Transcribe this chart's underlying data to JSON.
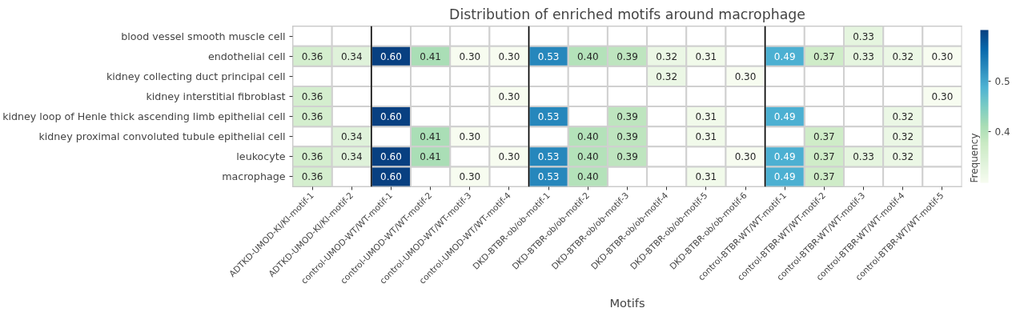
{
  "chart_data": {
    "type": "heatmap",
    "title": "Distribution of enriched motifs around macrophage",
    "xlabel": "Motifs",
    "clabel": "Frequency",
    "categories": [
      "ADTKD-UMOD-KI/KI-motif-1",
      "ADTKD-UMOD-KI/KI-motif-2",
      "control-UMOD-WT/WT-motif-1",
      "control-UMOD-WT/WT-motif-2",
      "control-UMOD-WT/WT-motif-3",
      "control-UMOD-WT/WT-motif-4",
      "DKD-BTBR-ob/ob-motif-1",
      "DKD-BTBR-ob/ob-motif-2",
      "DKD-BTBR-ob/ob-motif-3",
      "DKD-BTBR-ob/ob-motif-4",
      "DKD-BTBR-ob/ob-motif-5",
      "DKD-BTBR-ob/ob-motif-6",
      "control-BTBR-WT/WT-motif-1",
      "control-BTBR-WT/WT-motif-2",
      "control-BTBR-WT/WT-motif-3",
      "control-BTBR-WT/WT-motif-4",
      "control-BTBR-WT/WT-motif-5"
    ],
    "y_categories": [
      "blood vessel smooth muscle cell",
      "endothelial cell",
      "kidney collecting duct principal cell",
      "kidney interstitial fibroblast",
      "kidney loop of Henle thick ascending limb epithelial cell",
      "kidney proximal convoluted tubule epithelial cell",
      "leukocyte",
      "macrophage"
    ],
    "cells": [
      [
        null,
        null,
        null,
        null,
        null,
        null,
        null,
        null,
        null,
        null,
        null,
        null,
        null,
        null,
        0.33,
        null,
        null
      ],
      [
        0.36,
        0.34,
        0.6,
        0.41,
        0.3,
        0.3,
        0.53,
        0.4,
        0.39,
        0.32,
        0.31,
        null,
        0.49,
        0.37,
        0.33,
        0.32,
        0.3
      ],
      [
        null,
        null,
        null,
        null,
        null,
        null,
        null,
        null,
        null,
        0.32,
        null,
        0.3,
        null,
        null,
        null,
        null,
        null
      ],
      [
        0.36,
        null,
        null,
        null,
        null,
        0.3,
        null,
        null,
        null,
        null,
        null,
        null,
        null,
        null,
        null,
        null,
        0.3
      ],
      [
        0.36,
        null,
        0.6,
        null,
        null,
        null,
        0.53,
        null,
        0.39,
        null,
        0.31,
        null,
        0.49,
        null,
        null,
        0.32,
        null
      ],
      [
        null,
        0.34,
        null,
        0.41,
        0.3,
        null,
        null,
        0.4,
        0.39,
        null,
        0.31,
        null,
        null,
        0.37,
        null,
        0.32,
        null
      ],
      [
        0.36,
        0.34,
        0.6,
        0.41,
        null,
        0.3,
        0.53,
        0.4,
        0.39,
        null,
        null,
        0.3,
        0.49,
        0.37,
        0.33,
        0.32,
        null
      ],
      [
        0.36,
        null,
        0.6,
        null,
        0.3,
        null,
        0.53,
        0.4,
        null,
        null,
        0.31,
        null,
        0.49,
        0.37,
        null,
        null,
        null
      ]
    ],
    "cell_labels": [
      [
        null,
        null,
        null,
        null,
        null,
        null,
        null,
        null,
        null,
        null,
        null,
        null,
        null,
        null,
        "0.33",
        null,
        null
      ],
      [
        "0.36",
        "0.34",
        "0.60",
        "0.41",
        "0.30",
        "0.30",
        "0.53",
        "0.40",
        "0.39",
        "0.32",
        "0.31",
        null,
        "0.49",
        "0.37",
        "0.33",
        "0.32",
        "0.30"
      ],
      [
        null,
        null,
        null,
        null,
        null,
        null,
        null,
        null,
        null,
        "0.32",
        null,
        "0.30",
        null,
        null,
        null,
        null,
        null
      ],
      [
        "0.36",
        null,
        null,
        null,
        null,
        "0.30",
        null,
        null,
        null,
        null,
        null,
        null,
        null,
        null,
        null,
        null,
        "0.30"
      ],
      [
        "0.36",
        null,
        "0.60",
        null,
        null,
        null,
        "0.53",
        null,
        "0.39",
        null,
        "0.31",
        null,
        "0.49",
        null,
        null,
        "0.32",
        null
      ],
      [
        null,
        "0.34",
        null,
        "0.41",
        "0.30",
        null,
        null,
        "0.40",
        "0.39",
        null,
        "0.31",
        null,
        null,
        "0.37",
        null,
        "0.32",
        null
      ],
      [
        "0.36",
        "0.34",
        "0.60",
        "0.41",
        null,
        "0.30",
        "0.53",
        "0.40",
        "0.39",
        null,
        null,
        "0.30",
        "0.49",
        "0.37",
        "0.33",
        "0.32",
        null
      ],
      [
        "0.36",
        null,
        "0.60",
        null,
        "0.30",
        null,
        "0.53",
        "0.40",
        null,
        null,
        "0.31",
        null,
        "0.49",
        "0.37",
        null,
        null,
        null
      ]
    ],
    "clim": [
      0.3,
      0.6
    ],
    "cticks": [
      0.4,
      0.5
    ]
  }
}
